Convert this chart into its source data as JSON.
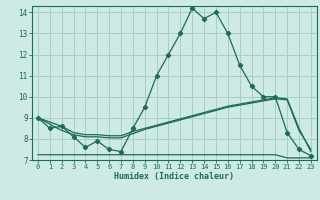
{
  "xlabel": "Humidex (Indice chaleur)",
  "xlim": [
    -0.5,
    23.5
  ],
  "ylim": [
    7,
    14.3
  ],
  "yticks": [
    7,
    8,
    9,
    10,
    11,
    12,
    13,
    14
  ],
  "xticks": [
    0,
    1,
    2,
    3,
    4,
    5,
    6,
    7,
    8,
    9,
    10,
    11,
    12,
    13,
    14,
    15,
    16,
    17,
    18,
    19,
    20,
    21,
    22,
    23
  ],
  "bg_color": "#ceeae4",
  "grid_color": "#aacdc8",
  "line_color": "#1a6b5a",
  "x": [
    0,
    1,
    2,
    3,
    4,
    5,
    6,
    7,
    8,
    9,
    10,
    11,
    12,
    13,
    14,
    15,
    16,
    17,
    18,
    19,
    20,
    21,
    22,
    23
  ],
  "y_main": [
    9.0,
    8.5,
    8.6,
    8.1,
    7.6,
    7.9,
    7.5,
    7.4,
    8.5,
    9.5,
    11.0,
    12.0,
    13.0,
    14.2,
    13.7,
    14.0,
    13.0,
    11.5,
    10.5,
    10.0,
    10.0,
    8.3,
    7.5,
    7.2
  ],
  "y_diag1": [
    9.0,
    8.8,
    8.6,
    8.3,
    8.2,
    8.2,
    8.15,
    8.15,
    8.35,
    8.5,
    8.65,
    8.8,
    8.95,
    9.1,
    9.25,
    9.4,
    9.55,
    9.65,
    9.75,
    9.85,
    9.95,
    9.9,
    8.5,
    7.4
  ],
  "y_diag2": [
    9.0,
    8.7,
    8.4,
    8.2,
    8.1,
    8.1,
    8.05,
    8.05,
    8.25,
    8.45,
    8.6,
    8.75,
    8.9,
    9.05,
    9.2,
    9.35,
    9.5,
    9.6,
    9.7,
    9.8,
    9.9,
    9.85,
    8.4,
    7.5
  ],
  "y_flat": [
    7.25,
    7.25,
    7.25,
    7.25,
    7.25,
    7.25,
    7.25,
    7.25,
    7.25,
    7.25,
    7.25,
    7.25,
    7.25,
    7.25,
    7.25,
    7.25,
    7.25,
    7.25,
    7.25,
    7.25,
    7.25,
    7.1,
    7.1,
    7.1
  ]
}
